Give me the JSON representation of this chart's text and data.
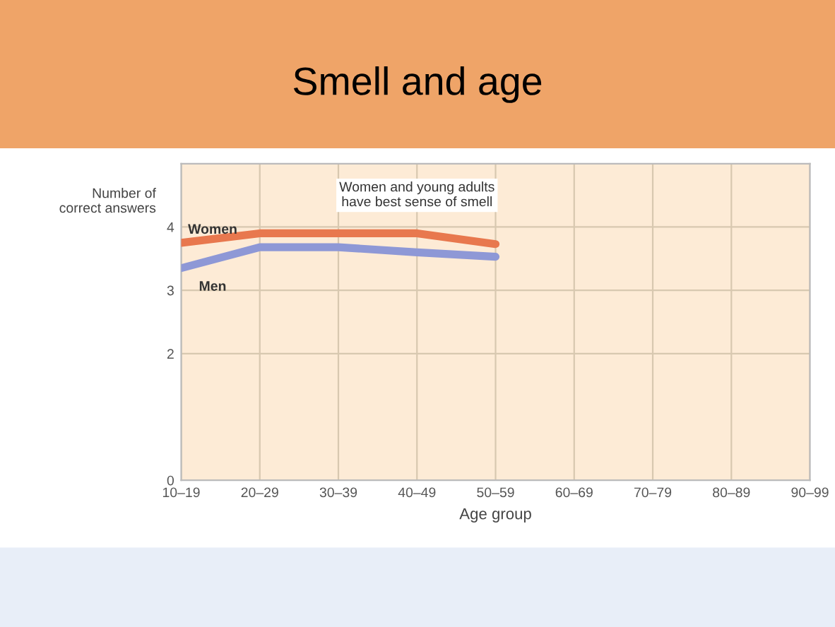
{
  "chart_data": {
    "type": "line",
    "title": "Smell and age",
    "xlabel": "Age group",
    "ylabel": "Number of\ncorrect answers",
    "categories": [
      "10–19",
      "20–29",
      "30–39",
      "40–49",
      "50–59",
      "60–69",
      "70–79",
      "80–89",
      "90–99"
    ],
    "series": [
      {
        "name": "Women",
        "color": "#e8784e",
        "values": [
          3.75,
          3.9,
          3.9,
          3.9,
          3.73,
          null,
          null,
          null,
          null
        ]
      },
      {
        "name": "Men",
        "color": "#8e98d6",
        "values": [
          3.35,
          3.68,
          3.68,
          3.6,
          3.53,
          null,
          null,
          null,
          null
        ]
      }
    ],
    "ylim": [
      0,
      5
    ],
    "yticks": [
      0,
      2,
      3,
      4
    ],
    "annotations": [
      "Women and young adults\nhave best sense of smell"
    ],
    "grid": true,
    "legend": false,
    "marker": "none",
    "line_style": "solid"
  }
}
